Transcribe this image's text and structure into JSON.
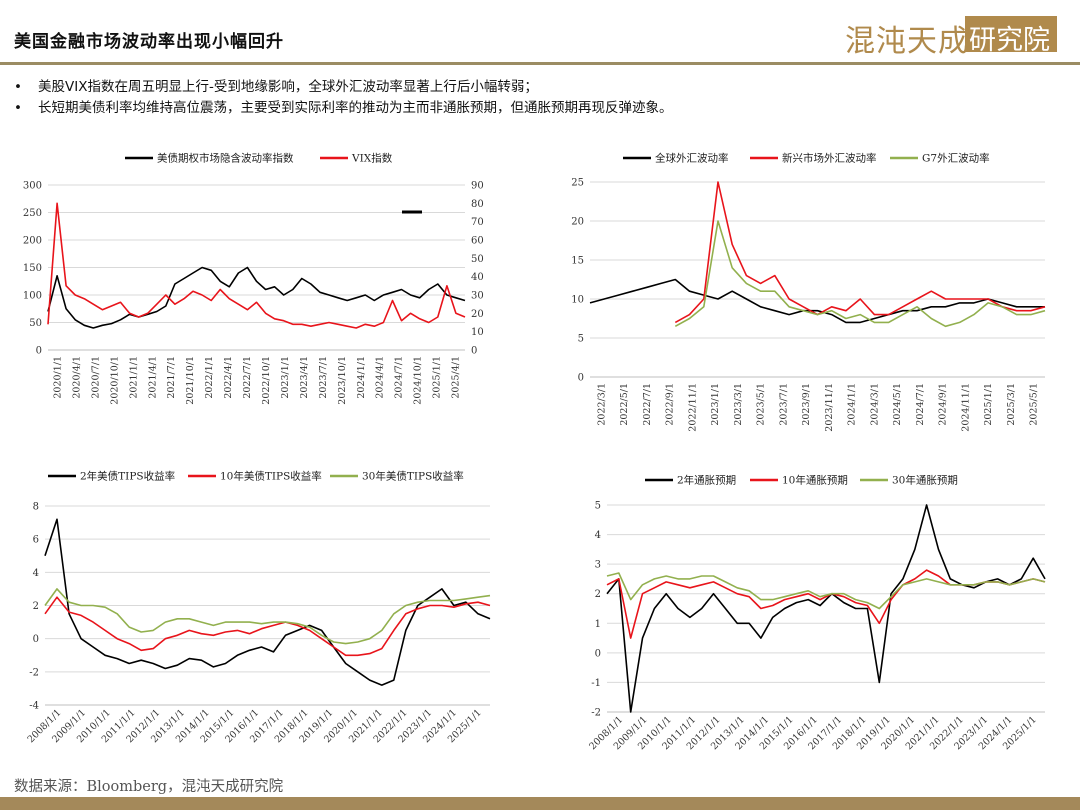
{
  "header": {
    "title": "美国金融市场波动率出现小幅回升",
    "logo_text": "混沌天成",
    "logo_box_text": "研究院",
    "brand_color": "#b08a4c"
  },
  "bullets": [
    "美股VIX指数在周五明显上行-受到地缘影响，全球外汇波动率显著上行后小幅转弱；",
    "长短期美债利率均维持高位震荡，主要受到实际利率的推动为主而非通胀预期，但通胀预期再现反弹迹象。"
  ],
  "footer": {
    "source": "数据来源：Bloomberg，混沌天成研究院"
  },
  "chart_data": [
    {
      "type": "line",
      "x_tick_labels": [
        "2020/1/1",
        "2020/4/1",
        "2020/7/1",
        "2020/10/1",
        "2021/1/1",
        "2021/4/1",
        "2021/7/1",
        "2021/10/1",
        "2022/1/1",
        "2022/4/1",
        "2022/7/1",
        "2022/10/1",
        "2023/1/1",
        "2023/4/1",
        "2023/7/1",
        "2023/10/1",
        "2024/1/1",
        "2024/4/1",
        "2024/7/1",
        "2024/10/1",
        "2025/1/1",
        "2025/4/1"
      ],
      "y_left_ticks": [
        0,
        50,
        100,
        150,
        200,
        250,
        300
      ],
      "y_right_ticks": [
        0,
        10,
        20,
        30,
        40,
        50,
        60,
        70,
        80,
        90
      ],
      "ylim_left": [
        0,
        300
      ],
      "ylim_right": [
        0,
        90
      ],
      "series": [
        {
          "name": "美债期权市场隐含波动率指数",
          "color": "#000000",
          "axis": "left",
          "values": [
            70,
            135,
            75,
            55,
            45,
            40,
            45,
            48,
            55,
            65,
            60,
            65,
            70,
            80,
            120,
            130,
            140,
            150,
            145,
            125,
            115,
            140,
            150,
            125,
            110,
            115,
            100,
            110,
            130,
            120,
            105,
            100,
            95,
            90,
            95,
            100,
            90,
            100,
            105,
            110,
            100,
            95,
            110,
            120,
            100,
            95,
            90
          ]
        },
        {
          "name": "VIX指数",
          "color": "#e8141b",
          "axis": "right",
          "values": [
            14,
            80,
            35,
            30,
            28,
            25,
            22,
            24,
            26,
            20,
            18,
            20,
            25,
            30,
            25,
            28,
            32,
            30,
            27,
            33,
            28,
            25,
            22,
            26,
            20,
            17,
            16,
            14,
            14,
            13,
            14,
            15,
            14,
            13,
            12,
            14,
            13,
            15,
            27,
            16,
            20,
            17,
            15,
            18,
            35,
            20,
            18
          ]
        }
      ],
      "annotation": "—"
    },
    {
      "type": "line",
      "x_tick_labels": [
        "2022/3/1",
        "2022/5/1",
        "2022/7/1",
        "2022/9/1",
        "2022/11/1",
        "2023/1/1",
        "2023/3/1",
        "2023/5/1",
        "2023/7/1",
        "2023/9/1",
        "2023/11/1",
        "2024/1/1",
        "2024/3/1",
        "2024/5/1",
        "2024/7/1",
        "2024/9/1",
        "2024/11/1",
        "2025/1/1",
        "2025/3/1",
        "2025/5/1"
      ],
      "y_ticks": [
        0,
        5,
        10,
        15,
        20,
        25
      ],
      "ylim": [
        0,
        25
      ],
      "series": [
        {
          "name": "全球外汇波动率",
          "color": "#000000",
          "values": [
            9.5,
            10,
            10.5,
            11,
            11.5,
            12,
            12.5,
            11,
            10.5,
            10,
            11,
            10,
            9,
            8.5,
            8,
            8.5,
            8.5,
            8,
            7,
            7,
            7.5,
            8,
            8.5,
            8.5,
            9,
            9,
            9.5,
            9.5,
            10,
            9.5,
            9,
            9,
            9
          ]
        },
        {
          "name": "新兴市场外汇波动率",
          "color": "#e8141b",
          "values": [
            null,
            null,
            null,
            null,
            null,
            null,
            7,
            8,
            10,
            25,
            17,
            13,
            12,
            13,
            10,
            9,
            8,
            9,
            8.5,
            10,
            8,
            8,
            9,
            10,
            11,
            10,
            10,
            10,
            10,
            9,
            8.5,
            8.5,
            9
          ]
        },
        {
          "name": "G7外汇波动率",
          "color": "#92b04e",
          "values": [
            null,
            null,
            null,
            null,
            null,
            null,
            6.5,
            7.5,
            9,
            20,
            14,
            12,
            11,
            11,
            9,
            8.5,
            8,
            8.5,
            7.5,
            8,
            7,
            7,
            8,
            9,
            7.5,
            6.5,
            7,
            8,
            9.5,
            9,
            8,
            8,
            8.5
          ]
        }
      ]
    },
    {
      "type": "line",
      "x_tick_labels": [
        "2008/1/1",
        "2009/1/1",
        "2010/1/1",
        "2011/1/1",
        "2012/1/1",
        "2013/1/1",
        "2014/1/1",
        "2015/1/1",
        "2016/1/1",
        "2017/1/1",
        "2018/1/1",
        "2019/1/1",
        "2020/1/1",
        "2021/1/1",
        "2022/1/1",
        "2023/1/1",
        "2024/1/1",
        "2025/1/1"
      ],
      "y_ticks": [
        -4,
        -2,
        0,
        2,
        4,
        6,
        8
      ],
      "ylim": [
        -4,
        8
      ],
      "series": [
        {
          "name": "2年美债TIPS收益率",
          "color": "#000000",
          "values": [
            5,
            7.2,
            1.5,
            0,
            -0.5,
            -1,
            -1.2,
            -1.5,
            -1.3,
            -1.5,
            -1.8,
            -1.6,
            -1.2,
            -1.3,
            -1.7,
            -1.5,
            -1,
            -0.7,
            -0.5,
            -0.8,
            0.2,
            0.5,
            0.8,
            0.5,
            -0.5,
            -1.5,
            -2,
            -2.5,
            -2.8,
            -2.5,
            0.5,
            2,
            2.5,
            3,
            2,
            2.2,
            1.5,
            1.2
          ]
        },
        {
          "name": "10年美债TIPS收益率",
          "color": "#e8141b",
          "values": [
            1.5,
            2.5,
            1.6,
            1.4,
            1,
            0.5,
            0,
            -0.3,
            -0.7,
            -0.6,
            0,
            0.2,
            0.5,
            0.3,
            0.2,
            0.4,
            0.5,
            0.3,
            0.6,
            0.8,
            1,
            0.8,
            0.5,
            0,
            -0.5,
            -1,
            -1,
            -0.9,
            -0.6,
            0.5,
            1.5,
            1.8,
            2,
            2,
            1.9,
            2.1,
            2.2,
            2
          ]
        },
        {
          "name": "30年美债TIPS收益率",
          "color": "#92b04e",
          "values": [
            2,
            3,
            2.2,
            2,
            2,
            1.9,
            1.5,
            0.7,
            0.4,
            0.5,
            1,
            1.2,
            1.2,
            1,
            0.8,
            1,
            1,
            1,
            0.9,
            1,
            1,
            0.9,
            0.7,
            0.2,
            -0.2,
            -0.3,
            -0.2,
            0,
            0.5,
            1.5,
            2,
            2.2,
            2.3,
            2.3,
            2.3,
            2.4,
            2.5,
            2.6
          ]
        }
      ]
    },
    {
      "type": "line",
      "x_tick_labels": [
        "2008/1/1",
        "2009/1/1",
        "2010/1/1",
        "2011/1/1",
        "2012/1/1",
        "2013/1/1",
        "2014/1/1",
        "2015/1/1",
        "2016/1/1",
        "2017/1/1",
        "2018/1/1",
        "2019/1/1",
        "2020/1/1",
        "2021/1/1",
        "2022/1/1",
        "2023/1/1",
        "2024/1/1",
        "2025/1/1"
      ],
      "y_ticks": [
        -2,
        -1,
        0,
        1,
        2,
        3,
        4,
        5
      ],
      "ylim": [
        -2,
        5
      ],
      "series": [
        {
          "name": "2年通胀预期",
          "color": "#000000",
          "values": [
            2,
            2.5,
            -2,
            0.5,
            1.5,
            2,
            1.5,
            1.2,
            1.5,
            2,
            1.5,
            1,
            1,
            0.5,
            1.2,
            1.5,
            1.7,
            1.8,
            1.6,
            2,
            1.7,
            1.5,
            1.5,
            -1,
            2,
            2.5,
            3.5,
            5,
            3.5,
            2.5,
            2.3,
            2.2,
            2.4,
            2.5,
            2.3,
            2.5,
            3.2,
            2.5
          ]
        },
        {
          "name": "10年通胀预期",
          "color": "#e8141b",
          "values": [
            2.3,
            2.5,
            0.5,
            2,
            2.2,
            2.4,
            2.3,
            2.2,
            2.3,
            2.4,
            2.2,
            2,
            1.9,
            1.5,
            1.6,
            1.8,
            1.9,
            2,
            1.8,
            2,
            1.9,
            1.7,
            1.6,
            1,
            1.8,
            2.3,
            2.5,
            2.8,
            2.6,
            2.3,
            2.3,
            2.3,
            2.4,
            2.4,
            2.3,
            2.4,
            2.5,
            2.4
          ]
        },
        {
          "name": "30年通胀预期",
          "color": "#92b04e",
          "values": [
            2.6,
            2.7,
            1.8,
            2.3,
            2.5,
            2.6,
            2.5,
            2.5,
            2.6,
            2.6,
            2.4,
            2.2,
            2.1,
            1.8,
            1.8,
            1.9,
            2,
            2.1,
            1.9,
            2,
            2,
            1.8,
            1.7,
            1.5,
            1.9,
            2.3,
            2.4,
            2.5,
            2.4,
            2.3,
            2.3,
            2.3,
            2.4,
            2.4,
            2.3,
            2.4,
            2.5,
            2.4
          ]
        }
      ]
    }
  ]
}
